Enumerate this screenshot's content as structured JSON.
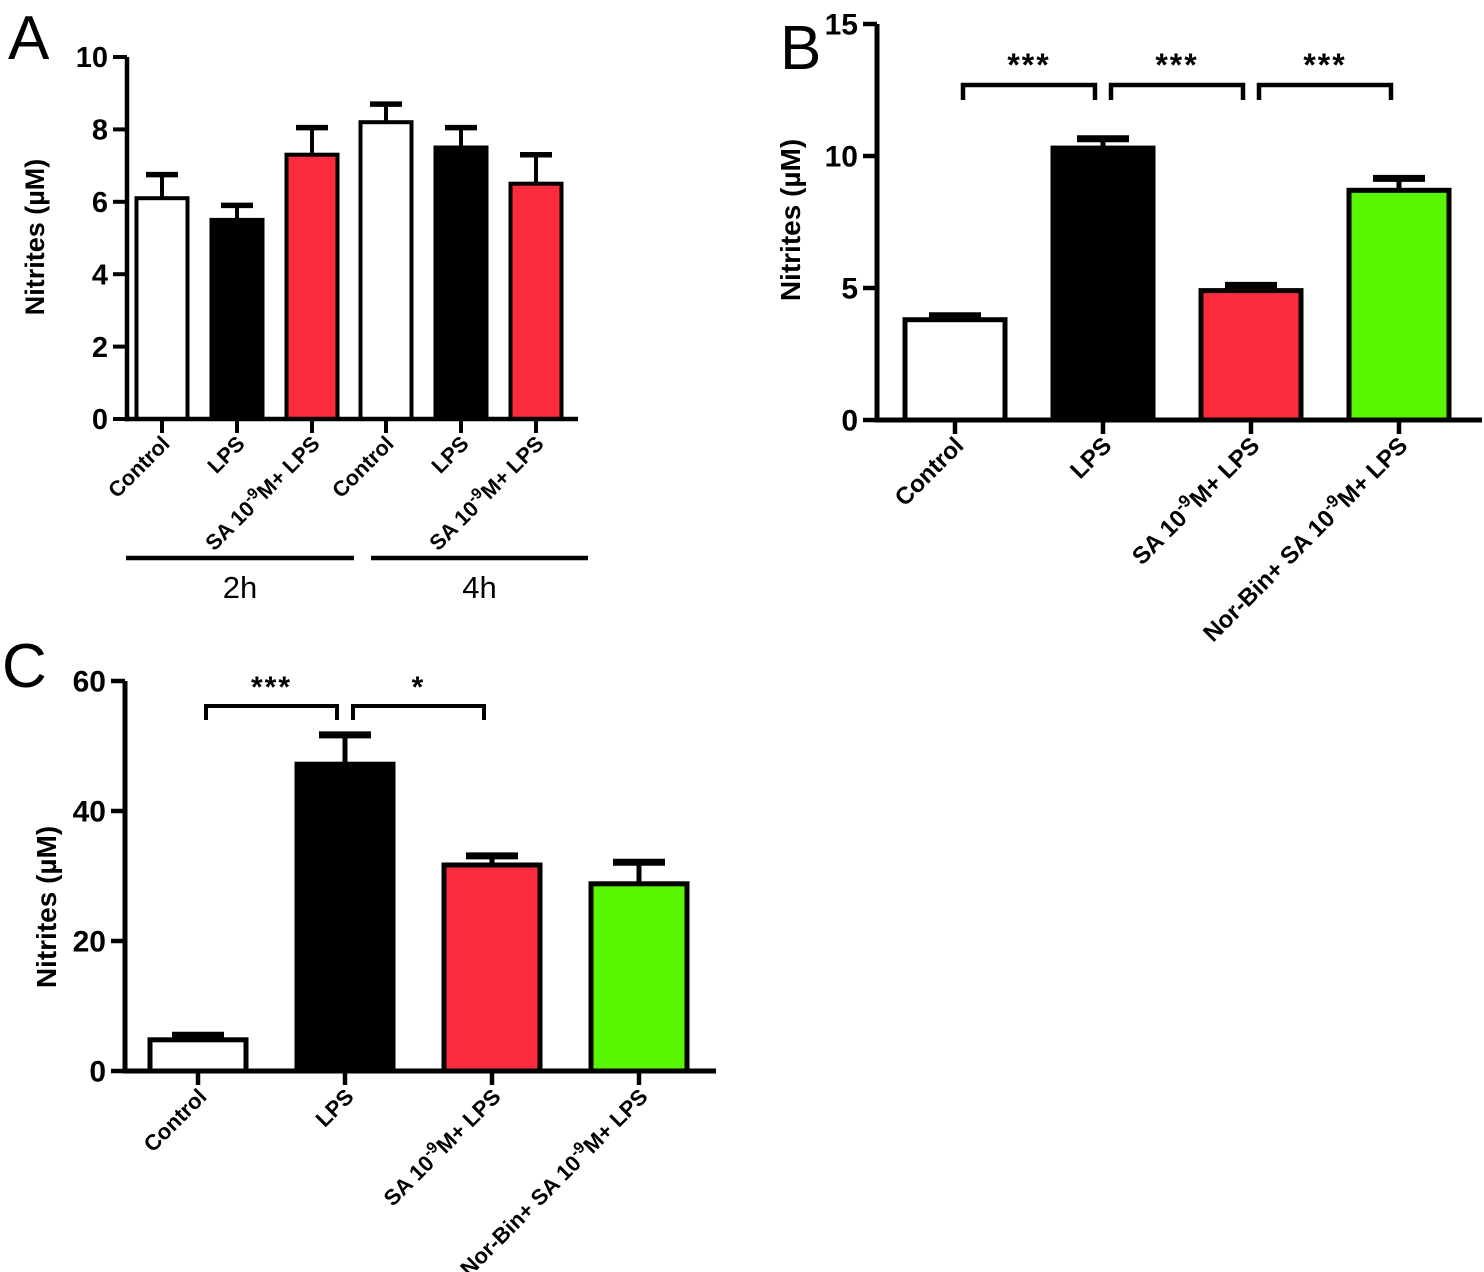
{
  "chart_data": [
    {
      "type": "bar",
      "letter": "A",
      "ylabel": "Nitrites (µM)",
      "ylim": [
        0,
        10
      ],
      "yticks": [
        0,
        2,
        4,
        6,
        8,
        10
      ],
      "categories": [
        "Control",
        "LPS",
        "SA 10^{-9}M+ LPS",
        "Control",
        "LPS",
        "SA 10^{-9}M+ LPS"
      ],
      "values": [
        6.1,
        5.5,
        7.3,
        8.2,
        7.5,
        6.5
      ],
      "errors": [
        0.65,
        0.4,
        0.75,
        0.5,
        0.55,
        0.8
      ],
      "bar_colors": [
        "#FFFFFF",
        "#000000",
        "#FC2B3E",
        "#FFFFFF",
        "#000000",
        "#FC2B3E"
      ],
      "bar_outline": "#000000",
      "groups": [
        {
          "label": "2h",
          "from": 0,
          "to": 2
        },
        {
          "label": "4h",
          "from": 3,
          "to": 5
        }
      ],
      "brackets": []
    },
    {
      "type": "bar",
      "letter": "B",
      "ylabel": "Nitrites (µM)",
      "ylim": [
        0,
        15
      ],
      "yticks": [
        0,
        5,
        10,
        15
      ],
      "categories": [
        "Control",
        "LPS",
        "SA 10^{-9}M+ LPS",
        "Nor-Bin+ SA 10^{-9}M+ LPS"
      ],
      "values": [
        3.8,
        10.3,
        4.9,
        8.7
      ],
      "errors": [
        0.15,
        0.35,
        0.2,
        0.45
      ],
      "bar_colors": [
        "#FFFFFF",
        "#000000",
        "#FC2B3E",
        "#57F500"
      ],
      "bar_outline": "#000000",
      "groups": [],
      "brackets": [
        {
          "from": 0,
          "to": 1,
          "label": "***"
        },
        {
          "from": 1,
          "to": 2,
          "label": "***"
        },
        {
          "from": 2,
          "to": 3,
          "label": "***"
        }
      ]
    },
    {
      "type": "bar",
      "letter": "C",
      "ylabel": "Nitrites (µM)",
      "ylim": [
        0,
        60
      ],
      "yticks": [
        0,
        20,
        40,
        60
      ],
      "categories": [
        "Control",
        "LPS",
        "SA 10^{-9}M+ LPS",
        "Nor-Bin+ SA 10^{-9}M+ LPS"
      ],
      "values": [
        4.8,
        47.2,
        31.7,
        28.8
      ],
      "errors": [
        0.7,
        4.5,
        1.4,
        3.3
      ],
      "bar_colors": [
        "#FFFFFF",
        "#000000",
        "#FC2B3E",
        "#57F500"
      ],
      "bar_outline": "#000000",
      "groups": [],
      "brackets": [
        {
          "from": 0,
          "to": 1,
          "label": "***"
        },
        {
          "from": 1,
          "to": 2,
          "label": "*"
        }
      ]
    }
  ]
}
